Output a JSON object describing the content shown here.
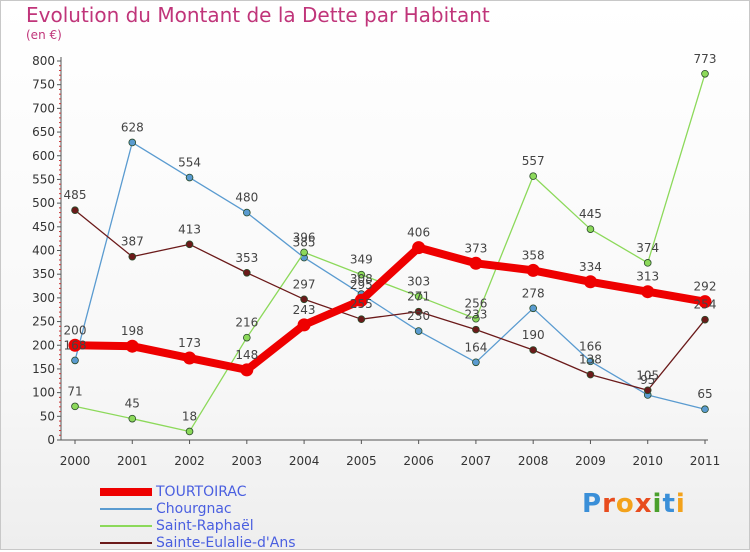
{
  "header": {
    "title": "Evolution du Montant de la Dette par Habitant",
    "unit": "(en €)"
  },
  "logo": {
    "text": "Proxiti",
    "letter_colors": [
      "#3a8fd8",
      "#e84c1e",
      "#f3a21b",
      "#e84c1e",
      "#4aa02c",
      "#3a8fd8",
      "#f3a21b"
    ]
  },
  "chart_data": {
    "type": "line",
    "title": "Evolution du Montant de la Dette par Habitant",
    "subtitle": "(en €)",
    "x": [
      "2000",
      "2001",
      "2002",
      "2003",
      "2004",
      "2005",
      "2006",
      "2007",
      "2008",
      "2009",
      "2010",
      "2011"
    ],
    "ylim": [
      0,
      800
    ],
    "yticks": [
      0,
      50,
      100,
      150,
      200,
      250,
      300,
      350,
      400,
      450,
      500,
      550,
      600,
      650,
      700,
      750,
      800
    ],
    "grid": false,
    "legend_position": "bottom-left",
    "series": [
      {
        "name": "TOURTOIRAC",
        "color": "#ee0000",
        "values": [
          200,
          198,
          173,
          148,
          243,
          295,
          406,
          373,
          358,
          334,
          313,
          292
        ]
      },
      {
        "name": "Chourgnac",
        "color": "#5a9bd0",
        "values": [
          168,
          628,
          554,
          480,
          385,
          308,
          230,
          164,
          278,
          166,
          95,
          65
        ]
      },
      {
        "name": "Saint-Raphaël",
        "color": "#8cd95a",
        "values": [
          71,
          45,
          18,
          216,
          396,
          349,
          303,
          256,
          557,
          445,
          374,
          773
        ]
      },
      {
        "name": "Sainte-Eulalie-d'Ans",
        "color": "#6b1a1a",
        "values": [
          485,
          387,
          413,
          353,
          297,
          255,
          271,
          233,
          190,
          138,
          105,
          254
        ]
      }
    ]
  }
}
